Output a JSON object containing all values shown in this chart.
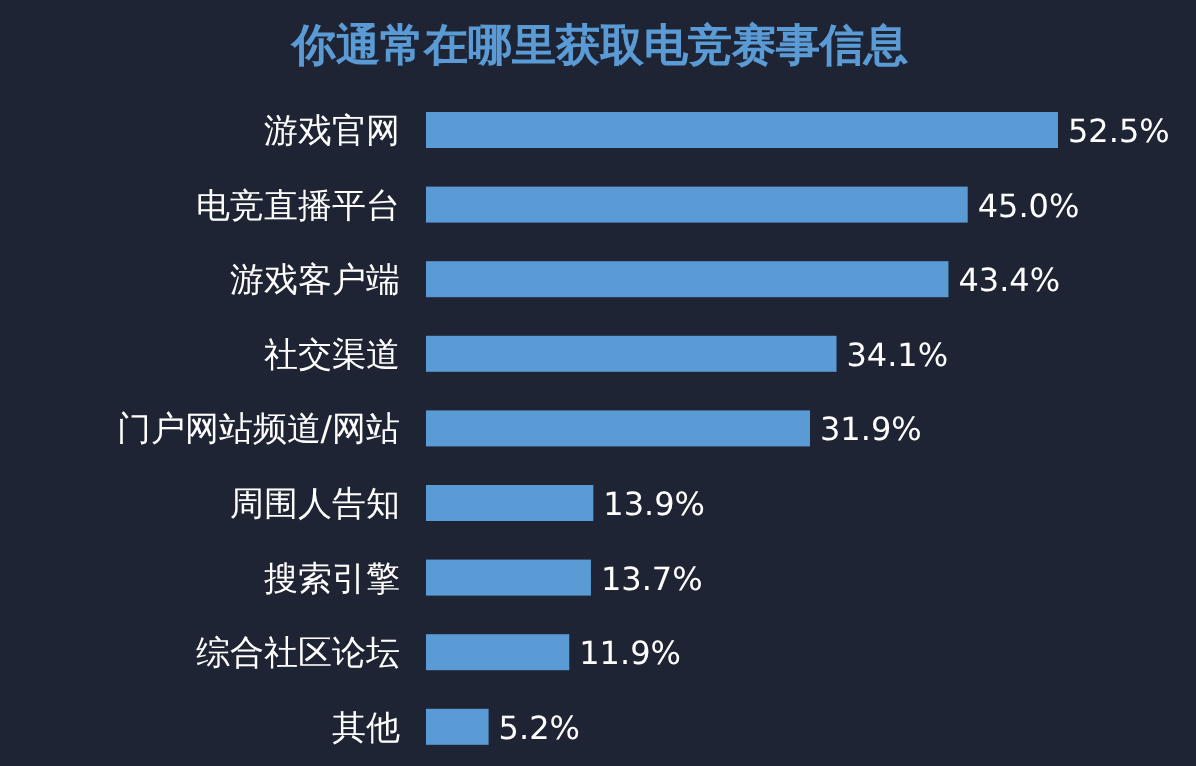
{
  "chart_data": {
    "type": "bar",
    "orientation": "horizontal",
    "title": "你通常在哪里获取电竞赛事信息",
    "categories": [
      "游戏官网",
      "电竞直播平台",
      "游戏客户端",
      "社交渠道",
      "门户网站频道/网站",
      "周围人告知",
      "搜索引擎",
      "综合社区论坛",
      "其他"
    ],
    "values": [
      52.5,
      45.0,
      43.4,
      34.1,
      31.9,
      13.9,
      13.7,
      11.9,
      5.2
    ],
    "value_labels": [
      "52.5%",
      "45.0%",
      "43.4%",
      "34.1%",
      "31.9%",
      "13.9%",
      "13.7%",
      "11.9%",
      "5.2%"
    ],
    "color": "#5b9bd5"
  }
}
